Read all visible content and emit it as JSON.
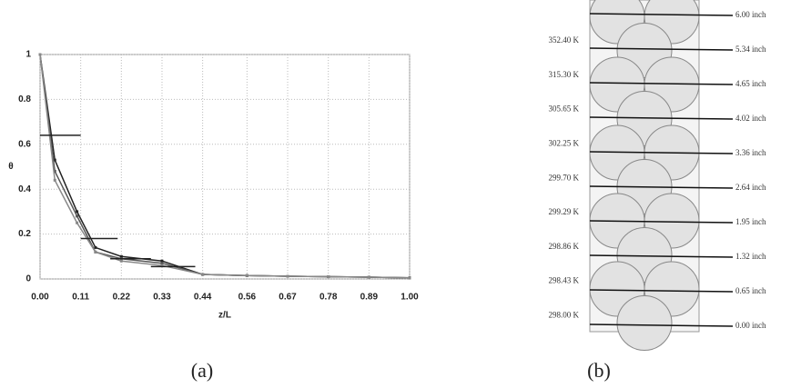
{
  "chart_data": {
    "type": "line",
    "x_label": "z/L",
    "y_label": "θ",
    "x": [
      0,
      0.04,
      0.1,
      0.15,
      0.22,
      0.33,
      0.44,
      0.56,
      0.67,
      0.78,
      0.89,
      1.0
    ],
    "series": [
      {
        "color": "#222222",
        "values": [
          1,
          0.53,
          0.3,
          0.14,
          0.1,
          0.08,
          0.02,
          0.015,
          0.012,
          0.01,
          0.008,
          0.005
        ]
      },
      {
        "color": "#555555",
        "values": [
          1,
          0.48,
          0.28,
          0.12,
          0.09,
          0.07,
          0.02,
          0.015,
          0.012,
          0.01,
          0.008,
          0.005
        ]
      },
      {
        "color": "#888888",
        "values": [
          1,
          0.44,
          0.25,
          0.12,
          0.08,
          0.06,
          0.02,
          0.015,
          0.012,
          0.01,
          0.008,
          0.005
        ]
      }
    ],
    "steps": {
      "color": "#222222",
      "x_start": [
        0,
        0.11,
        0.19,
        0.3
      ],
      "x_end": [
        0.11,
        0.21,
        0.3,
        0.42
      ],
      "values": [
        0.64,
        0.18,
        0.09,
        0.055
      ]
    },
    "xlim": [
      0,
      1.0
    ],
    "ylim": [
      0,
      1
    ],
    "xticks": [
      {
        "value": 0,
        "label": "0.00"
      },
      0.11,
      0.22,
      0.33,
      0.44,
      0.56,
      0.67,
      0.78,
      0.89,
      {
        "value": 1.0,
        "label": "1.00"
      }
    ],
    "yticks": [
      0,
      0.2,
      0.4,
      0.6,
      0.8,
      1
    ],
    "grid": true
  },
  "diagram": {
    "temperatures": [
      "352.40 K",
      "315.30 K",
      "305.65 K",
      "302.25 K",
      "299.70 K",
      "299.29 K",
      "298.86 K",
      "298.43 K",
      "298.00 K"
    ],
    "heights": [
      "6.00 inch",
      "5.34 inch",
      "4.65 inch",
      "4.02 inch",
      "3.36 inch",
      "2.64 inch",
      "1.95 inch",
      "1.32 inch",
      "0.65 inch",
      "0.00 inch"
    ]
  },
  "captions": [
    "(a)",
    "(b)"
  ]
}
